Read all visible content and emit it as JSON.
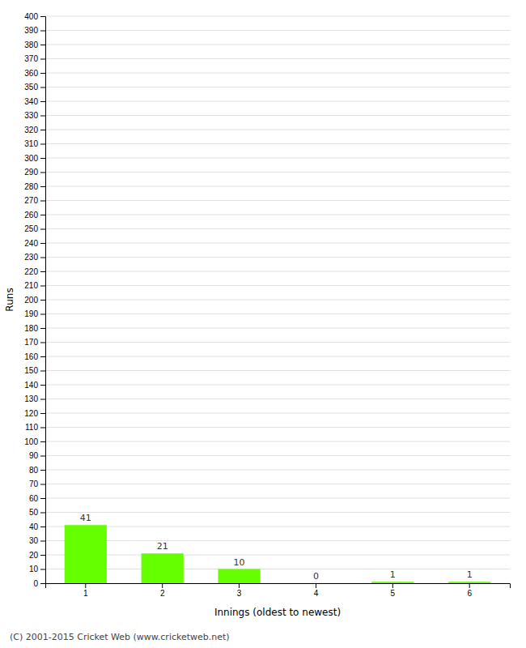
{
  "chart_data": {
    "type": "bar",
    "categories": [
      1,
      2,
      3,
      4,
      5,
      6
    ],
    "values": [
      41,
      21,
      10,
      0,
      1,
      1
    ],
    "color": "#66ff00",
    "xlabel": "Innings (oldest to newest)",
    "ylabel": "Runs",
    "ylim": [
      0,
      400
    ],
    "yticks": [
      0,
      10,
      20,
      30,
      40,
      50,
      60,
      70,
      80,
      90,
      100,
      110,
      120,
      130,
      140,
      150,
      160,
      170,
      180,
      190,
      200,
      210,
      220,
      230,
      240,
      250,
      260,
      270,
      280,
      290,
      300,
      310,
      320,
      330,
      340,
      350,
      360,
      370,
      380,
      390,
      400
    ],
    "grid": true,
    "data_labels": true,
    "annotations": [
      "(C) 2001-2015 Cricket Web (www.cricketweb.net)"
    ]
  }
}
